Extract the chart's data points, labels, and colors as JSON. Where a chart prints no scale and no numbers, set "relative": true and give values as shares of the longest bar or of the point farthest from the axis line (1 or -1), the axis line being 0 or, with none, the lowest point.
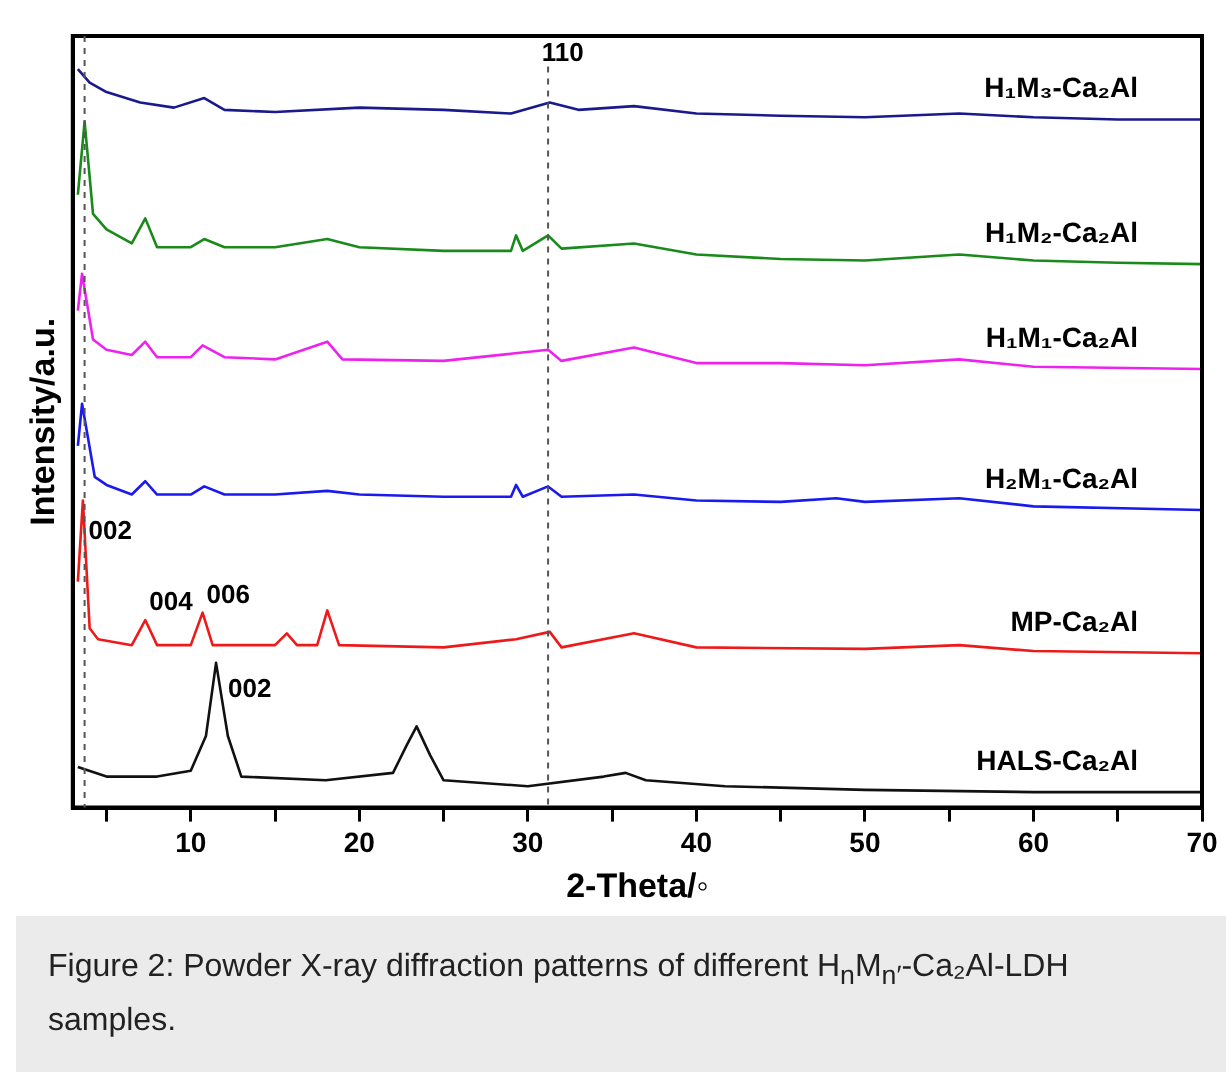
{
  "chart_data": {
    "type": "line",
    "relative": true,
    "xlabel": "2-Theta/◦",
    "ylabel": "Intensity/a.u.",
    "xlim": [
      3,
      70
    ],
    "xticks": [
      {
        "value": 5,
        "label": null
      },
      10,
      {
        "value": 15,
        "label": null
      },
      20,
      {
        "value": 25,
        "label": null
      },
      30,
      {
        "value": 35,
        "label": null
      },
      40,
      {
        "value": 45,
        "label": null
      },
      50,
      {
        "value": 55,
        "label": null
      },
      60,
      {
        "value": 65,
        "label": null
      },
      70
    ],
    "grid": false,
    "legend": false,
    "marker": "none",
    "line_style": "solid",
    "tick_labels": "x",
    "series": [
      {
        "name": "H₁M₃-Ca₂Al",
        "color": "#1a1a8c",
        "x": [
          3.3,
          4,
          5,
          7,
          9,
          10.8,
          12,
          15,
          20,
          25,
          29,
          31.3,
          33,
          36.3,
          40,
          45,
          50,
          55.6,
          60,
          65,
          70
        ],
        "values": [
          1.0,
          0.982,
          0.969,
          0.955,
          0.948,
          0.961,
          0.945,
          0.942,
          0.948,
          0.945,
          0.94,
          0.955,
          0.945,
          0.95,
          0.94,
          0.937,
          0.935,
          0.94,
          0.935,
          0.932,
          0.932
        ]
      },
      {
        "name": "H₁M₂-Ca₂Al",
        "color": "#1a8a1a",
        "x": [
          3.3,
          3.7,
          4.2,
          5,
          6.5,
          7.3,
          8,
          10,
          10.8,
          12,
          15,
          18.1,
          20,
          25,
          29,
          29.3,
          29.7,
          31.2,
          32,
          36.3,
          40,
          45,
          50,
          55.6,
          60,
          65,
          70
        ],
        "values": [
          0.83,
          0.929,
          0.804,
          0.783,
          0.764,
          0.798,
          0.759,
          0.759,
          0.77,
          0.759,
          0.759,
          0.77,
          0.759,
          0.754,
          0.754,
          0.775,
          0.754,
          0.775,
          0.757,
          0.764,
          0.749,
          0.743,
          0.741,
          0.749,
          0.741,
          0.738,
          0.736
        ]
      },
      {
        "name": "H₁M₁-Ca₂Al",
        "color": "#ee22ee",
        "x": [
          3.3,
          3.55,
          4.2,
          5,
          6.5,
          7.3,
          8,
          10,
          10.7,
          12,
          15,
          18.1,
          19,
          25,
          31.2,
          32,
          36.3,
          40,
          45,
          50,
          55.6,
          60,
          70
        ],
        "values": [
          0.673,
          0.723,
          0.634,
          0.62,
          0.613,
          0.631,
          0.61,
          0.61,
          0.626,
          0.61,
          0.607,
          0.631,
          0.607,
          0.605,
          0.62,
          0.605,
          0.623,
          0.602,
          0.602,
          0.599,
          0.607,
          0.597,
          0.594
        ]
      },
      {
        "name": "H₂M₁-Ca₂Al",
        "color": "#1a1aee",
        "x": [
          3.3,
          3.55,
          4.3,
          5,
          6.5,
          7.3,
          8,
          10,
          10.8,
          12,
          15,
          18.1,
          20,
          25,
          29,
          29.3,
          29.7,
          31.2,
          32,
          36.3,
          40,
          45,
          48.3,
          50,
          55.6,
          60,
          70
        ],
        "values": [
          0.49,
          0.547,
          0.448,
          0.437,
          0.424,
          0.442,
          0.424,
          0.424,
          0.435,
          0.424,
          0.424,
          0.429,
          0.424,
          0.421,
          0.421,
          0.437,
          0.421,
          0.435,
          0.421,
          0.424,
          0.416,
          0.414,
          0.419,
          0.414,
          0.419,
          0.408,
          0.403
        ]
      },
      {
        "name": "MP-Ca₂Al",
        "color": "#ee1a1a",
        "x": [
          3.3,
          3.6,
          4.0,
          4.5,
          6.5,
          7.3,
          8,
          10,
          10.7,
          11.3,
          15,
          15.7,
          16.3,
          17.5,
          18.1,
          18.8,
          25,
          29.3,
          31.3,
          32,
          36.3,
          40,
          50,
          55.6,
          60,
          70
        ],
        "values": [
          0.306,
          0.416,
          0.243,
          0.228,
          0.22,
          0.254,
          0.22,
          0.22,
          0.264,
          0.22,
          0.22,
          0.236,
          0.22,
          0.22,
          0.267,
          0.22,
          0.217,
          0.228,
          0.238,
          0.217,
          0.236,
          0.217,
          0.215,
          0.22,
          0.212,
          0.209
        ]
      },
      {
        "name": "HALS-Ca₂Al",
        "color": "#111111",
        "x": [
          3.3,
          5,
          8,
          10,
          10.9,
          11.5,
          12.2,
          13,
          18,
          22,
          22.8,
          23.4,
          24.2,
          25,
          30,
          34.5,
          35.8,
          37,
          41.7,
          50,
          60,
          70
        ],
        "values": [
          0.055,
          0.042,
          0.042,
          0.05,
          0.097,
          0.196,
          0.097,
          0.042,
          0.037,
          0.047,
          0.084,
          0.11,
          0.071,
          0.037,
          0.029,
          0.042,
          0.047,
          0.037,
          0.029,
          0.024,
          0.021,
          0.021
        ]
      }
    ],
    "ref_lines": [
      {
        "axis": "x",
        "value": 3.7,
        "color": "#555555",
        "line_style": "dashed"
      },
      {
        "axis": "x",
        "value": 31.2,
        "color": "#555555",
        "line_style": "dashed"
      }
    ],
    "annotations": [
      {
        "text": "110",
        "x": 31.3,
        "y": 0.955
      },
      {
        "text": "002",
        "x": 3.7,
        "y": 0.416
      },
      {
        "text": "004",
        "x": 7.3,
        "y": 0.254
      },
      {
        "text": "006",
        "x": 10.7,
        "y": 0.264
      },
      {
        "text": "002",
        "x": 11.5,
        "y": 0.196
      },
      "Figure 2: Powder X-ray diffraction patterns of different H$_{n}$M$_{n′}$-Ca₂Al-LDH samples."
    ]
  }
}
